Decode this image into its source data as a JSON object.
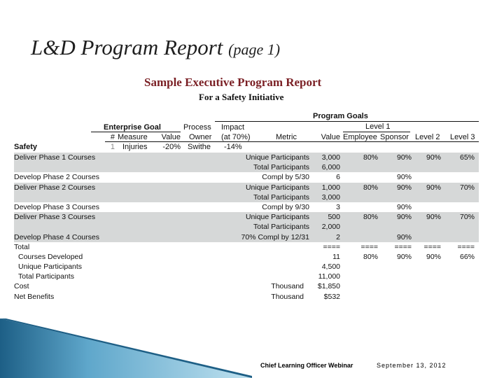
{
  "slide": {
    "title": "L&D Program Report",
    "title_sub": "(page 1)"
  },
  "report": {
    "title": "Sample Executive Program Report",
    "subtitle": "For a Safety Initiative"
  },
  "headers": {
    "program_goals": "Program Goals",
    "level1": "Level 1",
    "enterprise_goal": "Enterprise Goal",
    "process": "Process",
    "impact": "Impact",
    "hash": "#",
    "measure": "Measure",
    "value": "Value",
    "owner": "Owner",
    "impact_pct": "(at 70%)",
    "metric": "Metric",
    "goal_value": "Value",
    "employee": "Employee",
    "sponsor": "Sponsor",
    "level2": "Level 2",
    "level3": "Level 3"
  },
  "safety_row": {
    "label": "Safety",
    "num": "1",
    "measure": "Injuries",
    "value": "-20%",
    "owner": "Swithe",
    "impact": "-14%"
  },
  "rows": [
    {
      "label": "Deliver Phase 1 Courses",
      "metric": "Unique Participants",
      "value": "3,000",
      "employee": "80%",
      "sponsor": "90%",
      "level2": "90%",
      "level3": "65%",
      "shade": true
    },
    {
      "label": "",
      "metric": "Total Participants",
      "value": "6,000",
      "employee": "",
      "sponsor": "",
      "level2": "",
      "level3": "",
      "shade": true
    },
    {
      "label": "Develop Phase 2 Courses",
      "metric": "Compl by 5/30",
      "value": "6",
      "employee": "",
      "sponsor": "90%",
      "level2": "",
      "level3": "",
      "shade": false
    },
    {
      "label": "Deliver Phase 2 Courses",
      "metric": "Unique Participants",
      "value": "1,000",
      "employee": "80%",
      "sponsor": "90%",
      "level2": "90%",
      "level3": "70%",
      "shade": true
    },
    {
      "label": "",
      "metric": "Total Participants",
      "value": "3,000",
      "employee": "",
      "sponsor": "",
      "level2": "",
      "level3": "",
      "shade": true
    },
    {
      "label": "Develop Phase 3 Courses",
      "metric": "Compl by 9/30",
      "value": "3",
      "employee": "",
      "sponsor": "90%",
      "level2": "",
      "level3": "",
      "shade": false
    },
    {
      "label": "Deliver Phase 3 Courses",
      "metric": "Unique Participants",
      "value": "500",
      "employee": "80%",
      "sponsor": "90%",
      "level2": "90%",
      "level3": "70%",
      "shade": true
    },
    {
      "label": "",
      "metric": "Total Participants",
      "value": "2,000",
      "employee": "",
      "sponsor": "",
      "level2": "",
      "level3": "",
      "shade": true
    },
    {
      "label": "Develop Phase 4 Courses",
      "metric": "70% Compl by 12/31",
      "value": "2",
      "employee": "",
      "sponsor": "90%",
      "level2": "",
      "level3": "",
      "shade": true
    },
    {
      "label": "Total",
      "metric": "",
      "value": "====",
      "employee": "====",
      "sponsor": "====",
      "level2": "====",
      "level3": "====",
      "shade": false
    },
    {
      "label": "Courses Developed",
      "metric": "",
      "value": "11",
      "employee": "80%",
      "sponsor": "90%",
      "level2": "90%",
      "level3": "66%",
      "shade": false,
      "indent": true
    },
    {
      "label": "Unique Participants",
      "metric": "",
      "value": "4,500",
      "employee": "",
      "sponsor": "",
      "level2": "",
      "level3": "",
      "shade": false,
      "indent": true
    },
    {
      "label": "Total Participants",
      "metric": "",
      "value": "11,000",
      "employee": "",
      "sponsor": "",
      "level2": "",
      "level3": "",
      "shade": false,
      "indent": true
    },
    {
      "label": "Cost",
      "metric": "Thousand",
      "value": "$1,850",
      "employee": "",
      "sponsor": "",
      "level2": "",
      "level3": "",
      "shade": false
    },
    {
      "label": "Net Benefits",
      "metric": "Thousand",
      "value": "$532",
      "employee": "",
      "sponsor": "",
      "level2": "",
      "level3": "",
      "shade": false
    }
  ],
  "footer": {
    "left": "Chief Learning Officer Webinar",
    "right": "September 13, 2012"
  },
  "colors": {
    "row_shade": "#d6d8d8",
    "report_title": "#7a1f24",
    "wedge_dark": "#1d5f86",
    "wedge_light": "#bfe1ef"
  }
}
